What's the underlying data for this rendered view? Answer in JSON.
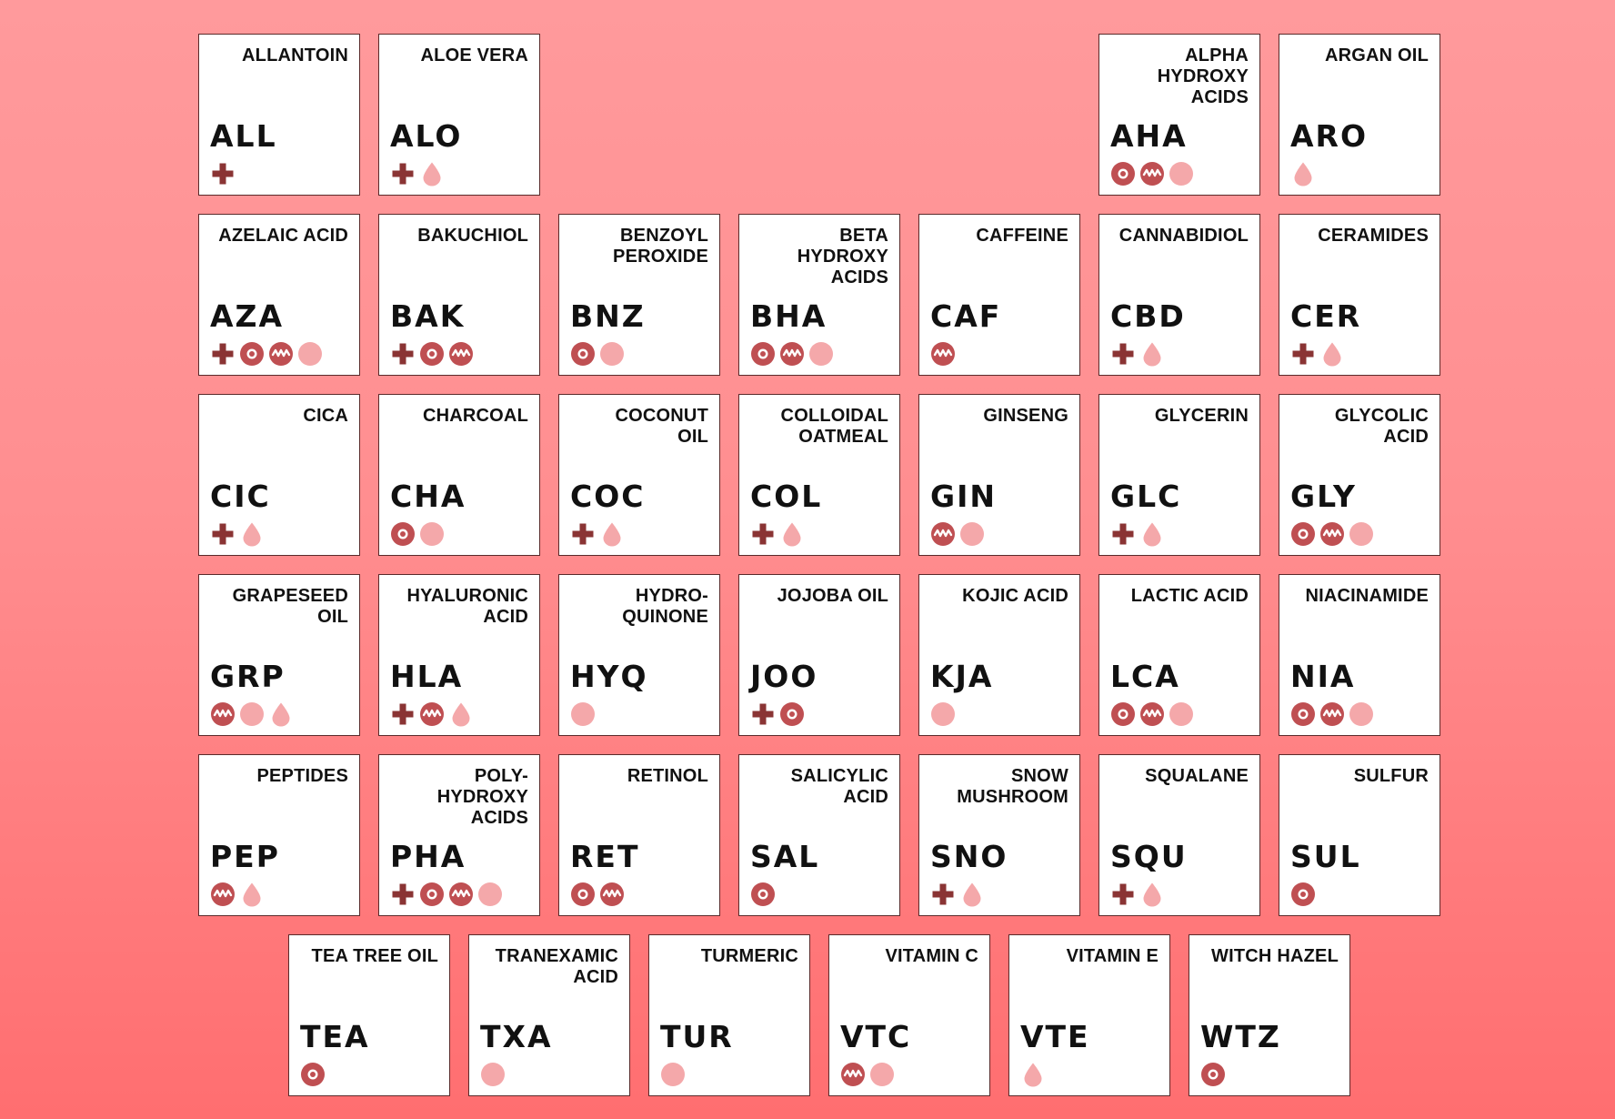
{
  "colors": {
    "dark": "#8a3434",
    "medium": "#bf4f52",
    "light": "#f4a8aa",
    "tile_background": "#ffffff",
    "tile_border": "#5a2a2a",
    "background_top": "#ff9a9c",
    "background_bottom": "#ff6e70"
  },
  "icon_names": {
    "plus": "plus-icon",
    "target": "ring-target-icon",
    "wave": "wave-icon",
    "dot": "dot-icon",
    "drop": "drop-icon"
  },
  "rows": [
    [
      {
        "name": "ALLANTOIN",
        "code": "ALL",
        "icons": [
          "plus"
        ]
      },
      {
        "name": "ALOE VERA",
        "code": "ALO",
        "icons": [
          "plus",
          "drop"
        ]
      },
      null,
      null,
      null,
      {
        "name": "ALPHA\nHYDROXY\nACIDS",
        "code": "AHA",
        "icons": [
          "target",
          "wave",
          "dot"
        ]
      },
      {
        "name": "ARGAN OIL",
        "code": "ARO",
        "icons": [
          "drop"
        ]
      }
    ],
    [
      {
        "name": "AZELAIC ACID",
        "code": "AZA",
        "icons": [
          "plus",
          "target",
          "wave",
          "dot"
        ]
      },
      {
        "name": "BAKUCHIOL",
        "code": "BAK",
        "icons": [
          "plus",
          "target",
          "wave"
        ]
      },
      {
        "name": "BENZOYL\nPEROXIDE",
        "code": "BNZ",
        "icons": [
          "target",
          "dot"
        ]
      },
      {
        "name": "BETA\nHYDROXY\nACIDS",
        "code": "BHA",
        "icons": [
          "target",
          "wave",
          "dot"
        ]
      },
      {
        "name": "CAFFEINE",
        "code": "CAF",
        "icons": [
          "wave"
        ]
      },
      {
        "name": "CANNABIDIOL",
        "code": "CBD",
        "icons": [
          "plus",
          "drop"
        ]
      },
      {
        "name": "CERAMIDES",
        "code": "CER",
        "icons": [
          "plus",
          "drop"
        ]
      }
    ],
    [
      {
        "name": "CICA",
        "code": "CIC",
        "icons": [
          "plus",
          "drop"
        ]
      },
      {
        "name": "CHARCOAL",
        "code": "CHA",
        "icons": [
          "target",
          "dot"
        ]
      },
      {
        "name": "COCONUT\nOIL",
        "code": "COC",
        "icons": [
          "plus",
          "drop"
        ]
      },
      {
        "name": "COLLOIDAL\nOATMEAL",
        "code": "COL",
        "icons": [
          "plus",
          "drop"
        ]
      },
      {
        "name": "GINSENG",
        "code": "GIN",
        "icons": [
          "wave",
          "dot"
        ]
      },
      {
        "name": "GLYCERIN",
        "code": "GLC",
        "icons": [
          "plus",
          "drop"
        ]
      },
      {
        "name": "GLYCOLIC\nACID",
        "code": "GLY",
        "icons": [
          "target",
          "wave",
          "dot"
        ]
      }
    ],
    [
      {
        "name": "GRAPESEED\nOIL",
        "code": "GRP",
        "icons": [
          "wave",
          "dot",
          "drop"
        ]
      },
      {
        "name": "HYALURONIC\nACID",
        "code": "HLA",
        "icons": [
          "plus",
          "wave",
          "drop"
        ]
      },
      {
        "name": "HYDRO-\nQUINONE",
        "code": "HYQ",
        "icons": [
          "dot"
        ]
      },
      {
        "name": "JOJOBA OIL",
        "code": "JOO",
        "icons": [
          "plus",
          "target"
        ]
      },
      {
        "name": "KOJIC ACID",
        "code": "KJA",
        "icons": [
          "dot"
        ]
      },
      {
        "name": "LACTIC ACID",
        "code": "LCA",
        "icons": [
          "target",
          "wave",
          "dot"
        ]
      },
      {
        "name": "NIACINAMIDE",
        "code": "NIA",
        "icons": [
          "target",
          "wave",
          "dot"
        ]
      }
    ],
    [
      {
        "name": "PEPTIDES",
        "code": "PEP",
        "icons": [
          "wave",
          "drop"
        ]
      },
      {
        "name": "POLY-\nHYDROXY\nACIDS",
        "code": "PHA",
        "icons": [
          "plus",
          "target",
          "wave",
          "dot"
        ]
      },
      {
        "name": "RETINOL",
        "code": "RET",
        "icons": [
          "target",
          "wave"
        ]
      },
      {
        "name": "SALICYLIC\nACID",
        "code": "SAL",
        "icons": [
          "target"
        ]
      },
      {
        "name": "SNOW\nMUSHROOM",
        "code": "SNO",
        "icons": [
          "plus",
          "drop"
        ]
      },
      {
        "name": "SQUALANE",
        "code": "SQU",
        "icons": [
          "plus",
          "drop"
        ]
      },
      {
        "name": "SULFUR",
        "code": "SUL",
        "icons": [
          "target"
        ]
      }
    ],
    [
      {
        "name": "TEA TREE OIL",
        "code": "TEA",
        "icons": [
          "target"
        ]
      },
      {
        "name": "TRANEXAMIC\nACID",
        "code": "TXA",
        "icons": [
          "dot"
        ]
      },
      {
        "name": "TURMERIC",
        "code": "TUR",
        "icons": [
          "dot"
        ]
      },
      {
        "name": "VITAMIN C",
        "code": "VTC",
        "icons": [
          "wave",
          "dot"
        ]
      },
      {
        "name": "VITAMIN E",
        "code": "VTE",
        "icons": [
          "drop"
        ]
      },
      {
        "name": "WITCH HAZEL",
        "code": "WTZ",
        "icons": [
          "target"
        ]
      }
    ]
  ]
}
